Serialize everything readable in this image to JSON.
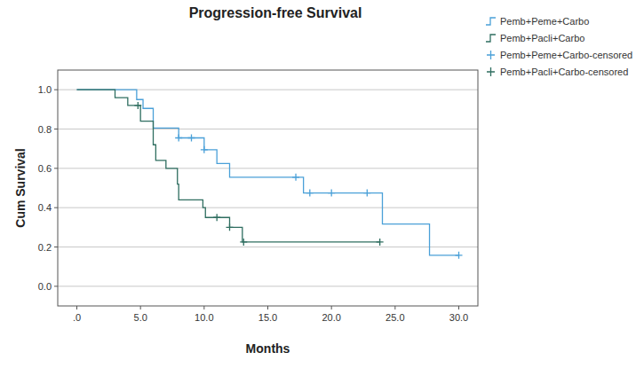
{
  "chart_data": {
    "type": "step",
    "title": "Progression-free Survival",
    "x_label": "Months",
    "y_label": "Cum Survival",
    "xlim": [
      -1.5,
      31.5
    ],
    "ylim": [
      -0.1,
      1.1
    ],
    "xticks": [
      {
        "value": 0,
        "label": ".0"
      },
      {
        "value": 5,
        "label": "5.0"
      },
      {
        "value": 10,
        "label": "10.0"
      },
      {
        "value": 15,
        "label": "15.0"
      },
      {
        "value": 20,
        "label": "20.0"
      },
      {
        "value": 25,
        "label": "25.0"
      },
      {
        "value": 30,
        "label": "30.0"
      }
    ],
    "yticks": [
      {
        "value": 0,
        "label": "0.0"
      },
      {
        "value": 0.2,
        "label": "0.2"
      },
      {
        "value": 0.4,
        "label": "0.4"
      },
      {
        "value": 0.6,
        "label": "0.6"
      },
      {
        "value": 0.8,
        "label": "0.8"
      },
      {
        "value": 1,
        "label": "1.0"
      }
    ],
    "grid": true,
    "legend": "right",
    "series": [
      {
        "name": "Pemb+Peme+Carbo",
        "type": "step",
        "color": "#4aa0d8",
        "x": [
          0,
          4.7,
          5.2,
          6.0,
          8.0,
          10.0,
          11.0,
          12.0,
          17.8,
          24.0,
          27.7,
          30.0
        ],
        "values": [
          1,
          0.95,
          0.905,
          0.805,
          0.755,
          0.695,
          0.625,
          0.555,
          0.475,
          0.317,
          0.158,
          0.158
        ]
      },
      {
        "name": "Pemb+Pacli+Carbo",
        "type": "step",
        "color": "#2f6e60",
        "x": [
          0,
          3.0,
          4.0,
          5.0,
          6.0,
          6.2,
          7.0,
          7.9,
          8.0,
          9.9,
          10.1,
          12.0,
          13.0,
          23.8
        ],
        "values": [
          1,
          0.96,
          0.92,
          0.84,
          0.72,
          0.64,
          0.6,
          0.52,
          0.44,
          0.4,
          0.35,
          0.3,
          0.225,
          0.225
        ]
      },
      {
        "name": "Pemb+Peme+Carbo-censored",
        "type": "scatter",
        "marker": "plus",
        "color": "#4aa0d8",
        "x": [
          8.0,
          9.0,
          10.0,
          17.2,
          18.3,
          20.0,
          22.8,
          30.0
        ],
        "values": [
          0.755,
          0.755,
          0.695,
          0.555,
          0.475,
          0.475,
          0.475,
          0.158
        ]
      },
      {
        "name": "Pemb+Pacli+Carbo-censored",
        "type": "scatter",
        "marker": "plus",
        "color": "#2f6e60",
        "x": [
          4.8,
          11.0,
          12.0,
          13.1,
          23.8
        ],
        "values": [
          0.92,
          0.35,
          0.3,
          0.225,
          0.225
        ]
      }
    ]
  }
}
